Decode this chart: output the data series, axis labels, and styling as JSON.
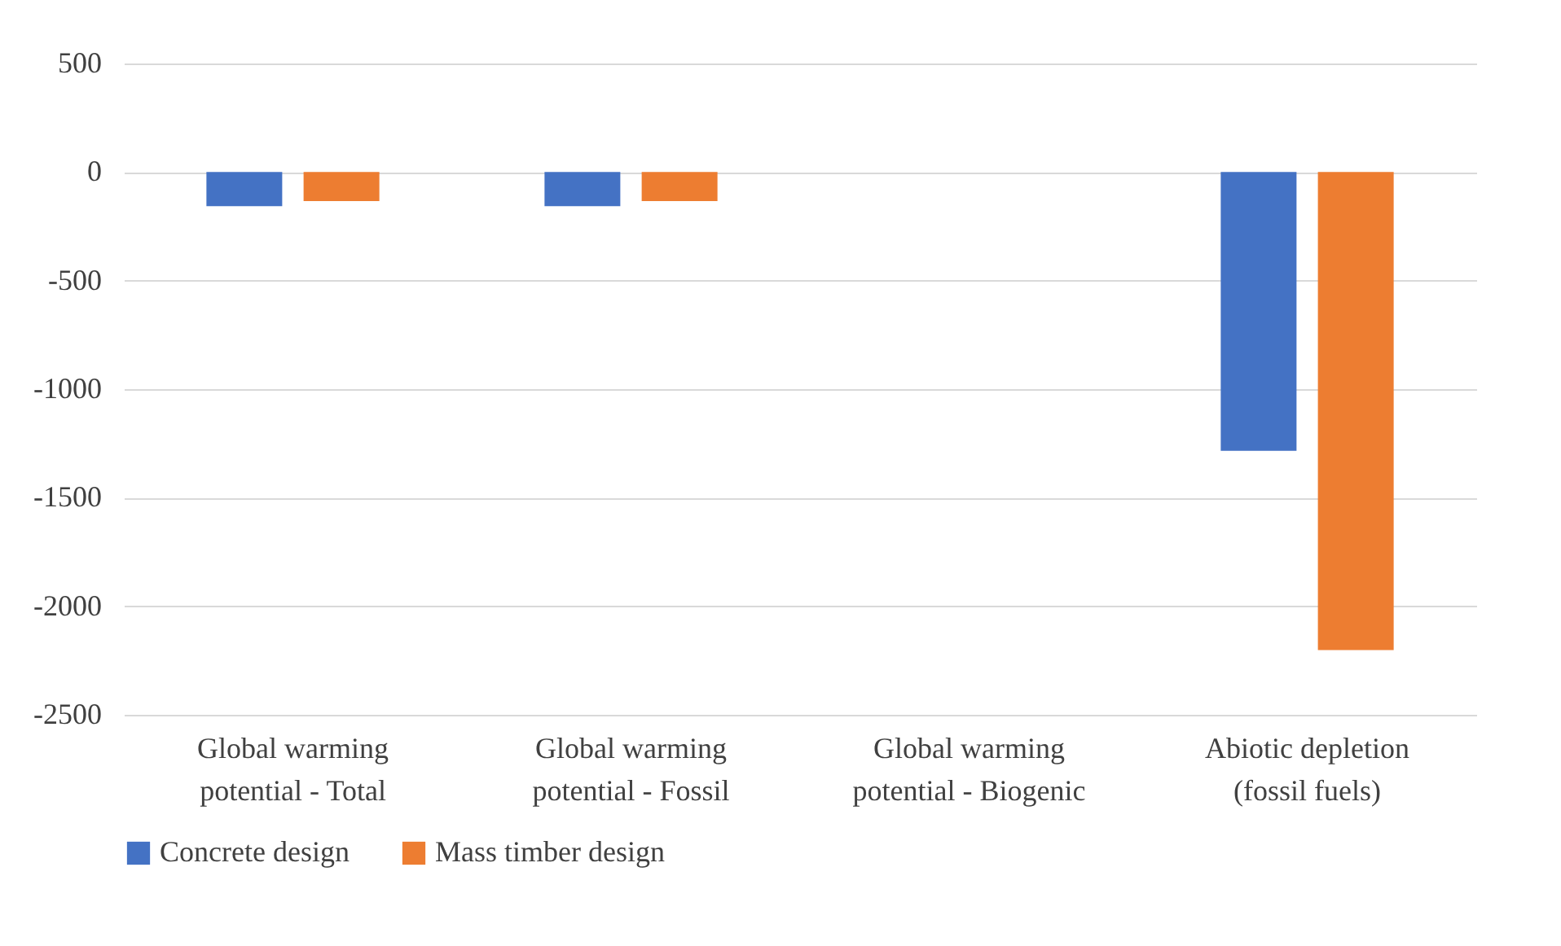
{
  "chart_data": {
    "type": "bar",
    "categories": [
      "Global warming potential - Total",
      "Global warming potential - Fossil",
      "Global warming potential - Biogenic",
      "Abiotic depletion (fossil fuels)"
    ],
    "series": [
      {
        "name": "Concrete design",
        "color": "#4472c4",
        "values": [
          -157,
          -157,
          0,
          -1284
        ]
      },
      {
        "name": "Mass timber design",
        "color": "#ed7d31",
        "values": [
          -134,
          -134,
          0,
          -2202
        ]
      }
    ],
    "ylim": [
      -2500,
      500
    ],
    "yticks": [
      -2500,
      -2000,
      -1500,
      -1000,
      -500,
      0,
      500
    ],
    "grid": "y",
    "legend": "bottom"
  }
}
